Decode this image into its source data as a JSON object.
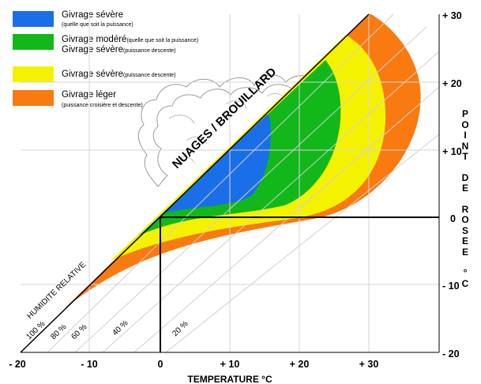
{
  "legend": [
    {
      "color": "#1a6fe8",
      "label": "Givrage sévère",
      "note": "(quelle que soit la puissance)"
    },
    {
      "color": "#12b81a",
      "label": "Givrage modéré",
      "note": "(quelle que soit la puissance)",
      "label2": "Givrage sévère",
      "note2": "(puissance descente)"
    },
    {
      "color": "#f5f200",
      "label": "Givrage sévère",
      "note": "(puissance descente)"
    },
    {
      "color": "#f87a10",
      "label": "Givrage léger",
      "note": "(puissance croisière et descente)"
    }
  ],
  "diagram": {
    "diagonal_label": "NUAGES / BROUILLARD",
    "humidity_label": "HUMIDITE RELATIVE",
    "humidity_lines": [
      "100 %",
      "80 %",
      "60 %",
      "40 %",
      "20 %"
    ],
    "x_ticks": [
      "- 20",
      "- 10",
      "0",
      "+ 10",
      "+ 20",
      "+ 30"
    ],
    "y_ticks": [
      "+ 30",
      "+ 20",
      "+ 10",
      "0",
      "- 10",
      "- 20"
    ],
    "x_axis_label": "TEMPERATURE °C",
    "y_axis_label": "POINT DE ROSEE °C"
  }
}
